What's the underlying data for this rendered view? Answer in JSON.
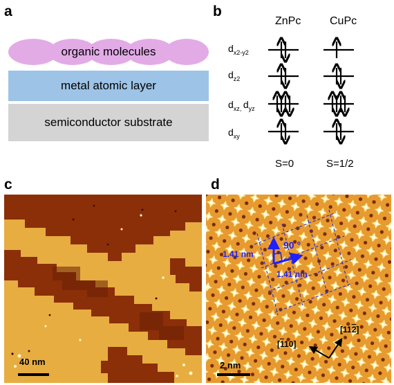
{
  "panels": {
    "a": {
      "letter": "a",
      "layers": {
        "top": "organic molecules",
        "middle": "metal atomic layer",
        "bottom": "semiconductor substrate"
      },
      "colors": {
        "molecule": "#e2abe6",
        "metal": "#9dc3e6",
        "substrate": "#d4d4d4"
      }
    },
    "b": {
      "letter": "b",
      "molecules": [
        "ZnPc",
        "CuPc"
      ],
      "orbitals": [
        {
          "base": "d",
          "sub": "x2-y2",
          "zn_electrons": 2,
          "cu_electrons": 1
        },
        {
          "base": "d",
          "sub": "z2",
          "zn_electrons": 2,
          "cu_electrons": 2
        },
        {
          "base": "d",
          "sub": "xz, ",
          "sub_extra": "yz",
          "label_mid": "d",
          "zn_electrons": 4,
          "cu_electrons": 4
        },
        {
          "base": "d",
          "sub": "xy",
          "zn_electrons": 2,
          "cu_electrons": 2
        }
      ],
      "spins": [
        "S=0",
        "S=1/2"
      ]
    },
    "c": {
      "letter": "c",
      "scalebar": "40 nm"
    },
    "d": {
      "letter": "d",
      "lattice_x": "1.41 nm",
      "lattice_y": "1.41 nm",
      "angle": "90 °",
      "dir1": "[11̅ 0]",
      "dir1_parts": {
        "bar": "1",
        "rest": "10"
      },
      "dir2_parts": {
        "pre": "11",
        "bar": "2"
      },
      "scalebar": "2 nm",
      "label_color": "#1f1fff"
    }
  }
}
